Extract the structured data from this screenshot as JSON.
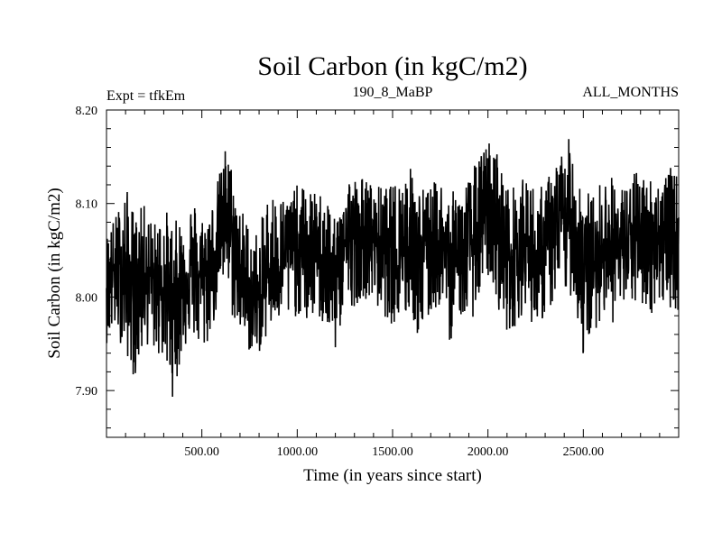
{
  "chart_data": {
    "type": "line",
    "title": "Soil Carbon (in kgC/m2)",
    "subtitle_left": "Expt = tfkEm",
    "subtitle_center": "190_8_MaBP",
    "subtitle_right": "ALL_MONTHS",
    "xlabel": "Time (in years since start)",
    "ylabel": "Soil Carbon (in kgC/m2)",
    "xlim": [
      0,
      3000
    ],
    "ylim": [
      7.85,
      8.2
    ],
    "xticks": [
      500,
      1000,
      1500,
      2000,
      2500
    ],
    "xtick_labels": [
      "500.00",
      "1000.00",
      "1500.00",
      "2000.00",
      "2500.00"
    ],
    "yticks": [
      7.9,
      8.0,
      8.1,
      8.2
    ],
    "ytick_labels": [
      "7.90",
      "8.00",
      "8.10",
      "8.20"
    ],
    "grid": false,
    "series": [
      {
        "color": "#000000",
        "x": [
          0,
          50,
          100,
          150,
          200,
          250,
          300,
          350,
          400,
          450,
          500,
          550,
          600,
          630,
          650,
          700,
          750,
          800,
          850,
          900,
          950,
          1000,
          1050,
          1100,
          1150,
          1200,
          1250,
          1300,
          1350,
          1400,
          1450,
          1500,
          1550,
          1600,
          1650,
          1700,
          1750,
          1800,
          1850,
          1900,
          1950,
          2000,
          2050,
          2100,
          2150,
          2200,
          2250,
          2300,
          2350,
          2400,
          2450,
          2500,
          2550,
          2600,
          2650,
          2700,
          2750,
          2800,
          2850,
          2900,
          2950,
          3000
        ],
        "y_mean": [
          8.02,
          8.03,
          8.02,
          8.01,
          8.03,
          8.02,
          8.01,
          8.0,
          8.02,
          8.03,
          8.02,
          8.04,
          8.07,
          8.09,
          8.06,
          8.03,
          8.0,
          7.99,
          8.03,
          8.04,
          8.05,
          8.05,
          8.04,
          8.05,
          8.04,
          8.01,
          8.06,
          8.06,
          8.07,
          8.06,
          8.05,
          8.04,
          8.05,
          8.06,
          8.04,
          8.05,
          8.06,
          8.04,
          8.05,
          8.05,
          8.07,
          8.09,
          8.07,
          8.04,
          8.05,
          8.06,
          8.04,
          8.05,
          8.07,
          8.08,
          8.08,
          8.03,
          8.03,
          8.06,
          8.06,
          8.05,
          8.06,
          8.06,
          8.06,
          8.06,
          8.06,
          8.06
        ],
        "y_max": [
          8.07,
          8.09,
          8.12,
          8.09,
          8.1,
          8.08,
          8.1,
          8.08,
          8.09,
          8.11,
          8.09,
          8.1,
          8.14,
          8.17,
          8.15,
          8.1,
          8.08,
          8.07,
          8.12,
          8.11,
          8.11,
          8.12,
          8.12,
          8.11,
          8.12,
          8.08,
          8.14,
          8.13,
          8.13,
          8.12,
          8.12,
          8.12,
          8.14,
          8.14,
          8.12,
          8.12,
          8.13,
          8.11,
          8.12,
          8.13,
          8.15,
          8.17,
          8.16,
          8.12,
          8.12,
          8.13,
          8.12,
          8.12,
          8.15,
          8.16,
          8.18,
          8.12,
          8.11,
          8.13,
          8.13,
          8.12,
          8.13,
          8.14,
          8.13,
          8.13,
          8.14,
          8.13
        ],
        "y_min": [
          7.95,
          7.96,
          7.94,
          7.91,
          7.95,
          7.94,
          7.93,
          7.89,
          7.94,
          7.96,
          7.93,
          7.96,
          8.0,
          8.02,
          7.98,
          7.96,
          7.94,
          7.94,
          7.96,
          7.97,
          7.97,
          7.98,
          7.97,
          7.98,
          7.96,
          7.94,
          7.99,
          7.99,
          8.0,
          7.99,
          7.98,
          7.97,
          7.97,
          7.98,
          7.94,
          7.98,
          7.99,
          7.95,
          7.98,
          7.97,
          7.99,
          8.02,
          7.99,
          7.96,
          7.97,
          7.99,
          7.96,
          7.98,
          7.99,
          8.0,
          8.0,
          7.93,
          7.96,
          7.98,
          7.97,
          7.98,
          7.99,
          7.99,
          7.98,
          7.99,
          7.99,
          7.98
        ]
      }
    ]
  }
}
